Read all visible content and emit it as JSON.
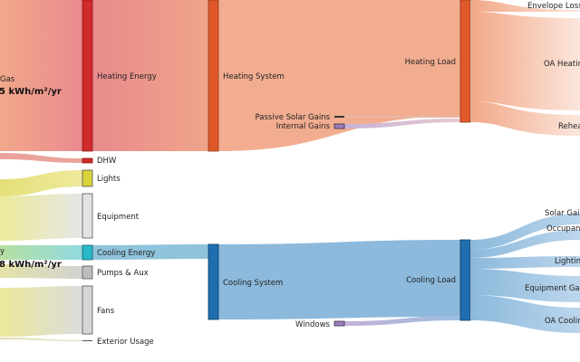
{
  "sources": {
    "gas": {
      "label": "Gas",
      "value": "5 kWh/m²/yr"
    },
    "electricity": {
      "label": "y",
      "value": "8 kWh/m²/yr"
    }
  },
  "nodes": {
    "heating_energy": "Heating Energy",
    "dhw": "DHW",
    "lights": "Lights",
    "equipment": "Equipment",
    "cooling_energy": "Cooling Energy",
    "pumps_aux": "Pumps & Aux",
    "fans": "Fans",
    "exterior_usage": "Exterior Usage",
    "heating_system": "Heating System",
    "cooling_system": "Cooling System",
    "passive_solar_gains": "Passive Solar Gains",
    "internal_gains": "Internal Gains",
    "windows": "Windows",
    "heating_load": "Heating Load",
    "cooling_load": "Cooling Load",
    "envelope_losses": "Envelope Losses",
    "oa_heating": "OA Heating",
    "reheat": "Reheat",
    "solar_gains": "Solar Gains",
    "occupants": "Occupants",
    "lighting": "Lighting",
    "equipment_gains": "Equipment Gains",
    "oa_cooling": "OA Cooling"
  },
  "colors": {
    "heating_node": "#d12a2a",
    "system_node": "#e0582a",
    "cooling_energy_node": "#29b7c9",
    "cooling_node": "#1f6fb0",
    "lights_node": "#d9d23a",
    "equipment_node": "#e3e3e3",
    "pumps_node": "#bdbdbd",
    "gains_node": "#a07cc0"
  }
}
